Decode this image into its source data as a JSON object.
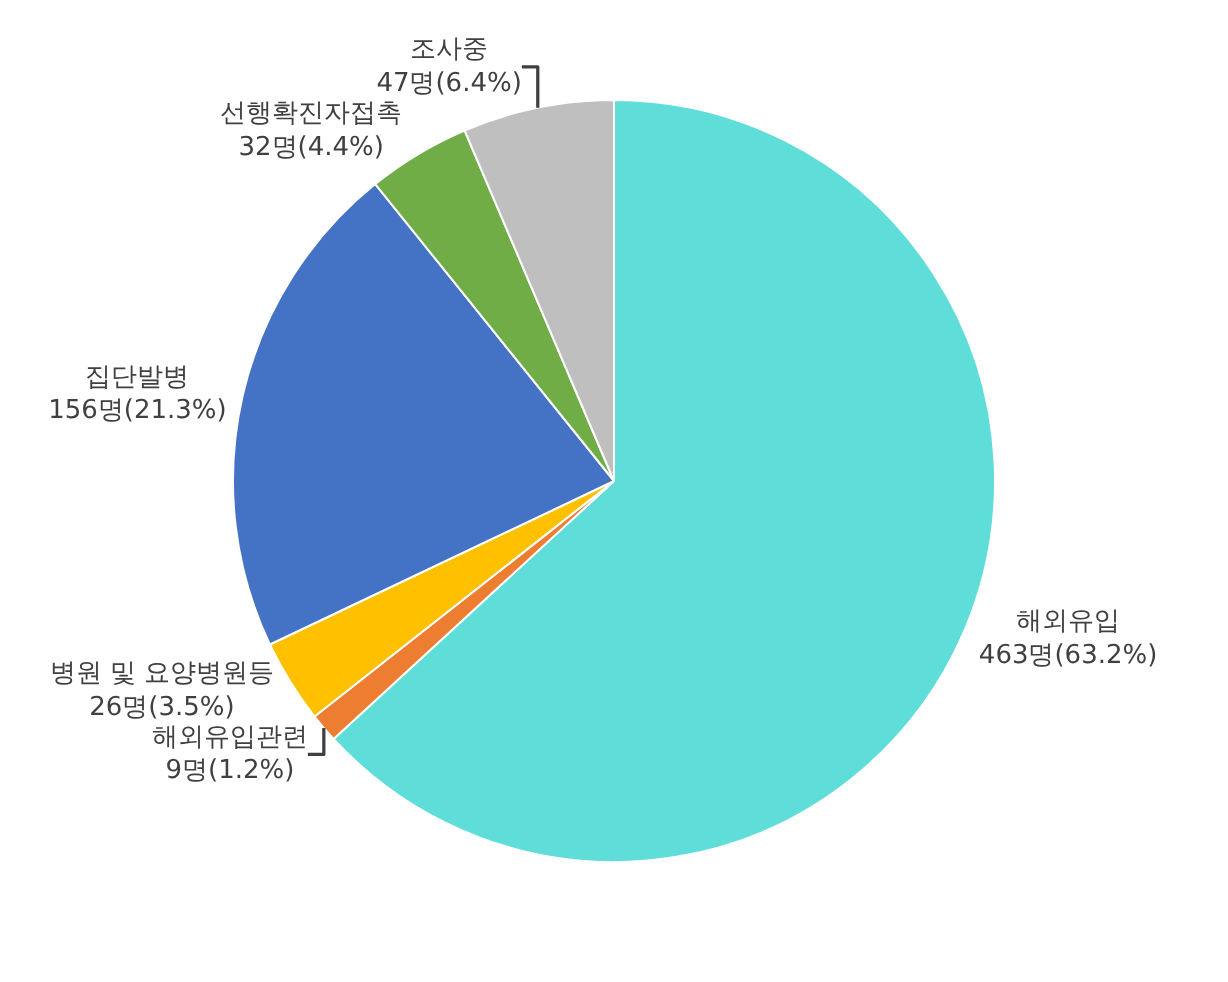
{
  "chart_data": {
    "type": "pie",
    "categories": [
      "해외유입",
      "해외유입관련",
      "병원 및 요양병원등",
      "집단발병",
      "선행확진자접촉",
      "조사중"
    ],
    "values": [
      463,
      9,
      26,
      156,
      32,
      47
    ],
    "value_labels": [
      "463명(63.2%)",
      "9명(1.2%)",
      "26명(3.5%)",
      "156명(21.3%)",
      "32명(4.4%)",
      "47명(6.4%)"
    ],
    "colors": [
      "#5eddd9",
      "#ed7d31",
      "#ffc000",
      "#4472c4",
      "#70ad47",
      "#bfbfbf"
    ],
    "legend": false
  }
}
